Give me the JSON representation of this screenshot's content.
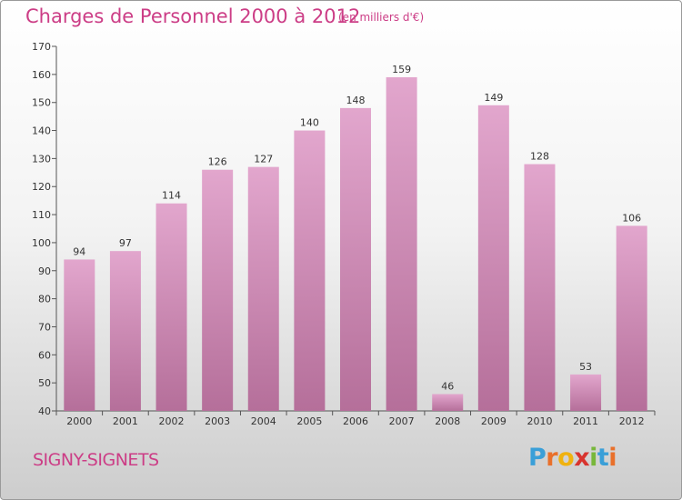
{
  "header": {
    "title": "Charges de Personnel 2000 à 2012",
    "subtitle": "(en milliers d'€)"
  },
  "footer": {
    "commune": "SIGNY-SIGNETS",
    "logo": {
      "letters": [
        "P",
        "r",
        "o",
        "x",
        "i",
        "t",
        "i"
      ],
      "colors": [
        "#3a9fd8",
        "#e9702b",
        "#f0b20f",
        "#d8342e",
        "#78b73b",
        "#3a9fd8",
        "#e9702b"
      ]
    }
  },
  "chart_data": {
    "type": "bar",
    "title": "Charges de Personnel 2000 à 2012",
    "subtitle": "(en milliers d'€)",
    "categories": [
      "2000",
      "2001",
      "2002",
      "2003",
      "2004",
      "2005",
      "2006",
      "2007",
      "2008",
      "2009",
      "2010",
      "2011",
      "2012"
    ],
    "values": [
      94,
      97,
      114,
      126,
      127,
      140,
      148,
      159,
      46,
      149,
      128,
      53,
      106
    ],
    "ylim": [
      40,
      170
    ],
    "yticks": [
      40,
      50,
      60,
      70,
      80,
      90,
      100,
      110,
      120,
      130,
      140,
      150,
      160,
      170
    ],
    "grid": false,
    "colors": {
      "bar_top": "#e2a6cd",
      "bar_bottom": "#b56f9a",
      "axis": "#555555"
    }
  }
}
